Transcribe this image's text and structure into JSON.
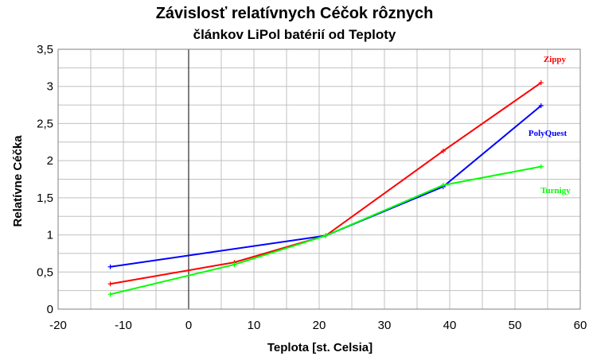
{
  "chart_data": {
    "type": "line",
    "title": "Závislosť relatívnych Céčok rôznych",
    "subtitle": "článkov LiPol batérií od Teploty",
    "xlabel": "Teplota [st. Celsia]",
    "ylabel": "Relatívne Céčka",
    "xlim": [
      -20,
      60
    ],
    "ylim": [
      0,
      3.5
    ],
    "x_ticks": [
      -20,
      -10,
      0,
      10,
      20,
      30,
      40,
      50,
      60
    ],
    "x_tick_labels": [
      "-20",
      "-10",
      "0",
      "10",
      "20",
      "30",
      "40",
      "50",
      "60"
    ],
    "y_ticks": [
      0,
      0.5,
      1,
      1.5,
      2,
      2.5,
      3,
      3.5
    ],
    "y_tick_labels": [
      "0",
      "0,5",
      "1",
      "1,5",
      "2",
      "2,5",
      "3",
      "3,5"
    ],
    "x_minor_step": 5,
    "y_minor_step": 0.25,
    "grid": true,
    "series": [
      {
        "name": "Zippy",
        "color": "#ff0000",
        "points": [
          [
            -12,
            0.34
          ],
          [
            7,
            0.63
          ],
          [
            21,
            0.99
          ],
          [
            39,
            2.13
          ],
          [
            54,
            3.05
          ]
        ]
      },
      {
        "name": "PolyQuest",
        "color": "#0000ff",
        "points": [
          [
            -12,
            0.57
          ],
          [
            21,
            0.99
          ],
          [
            39,
            1.65
          ],
          [
            54,
            2.74
          ]
        ]
      },
      {
        "name": "Turnigy",
        "color": "#00ff00",
        "points": [
          [
            -12,
            0.2
          ],
          [
            7,
            0.6
          ],
          [
            21,
            0.99
          ],
          [
            39,
            1.67
          ],
          [
            54,
            1.92
          ]
        ]
      }
    ]
  }
}
